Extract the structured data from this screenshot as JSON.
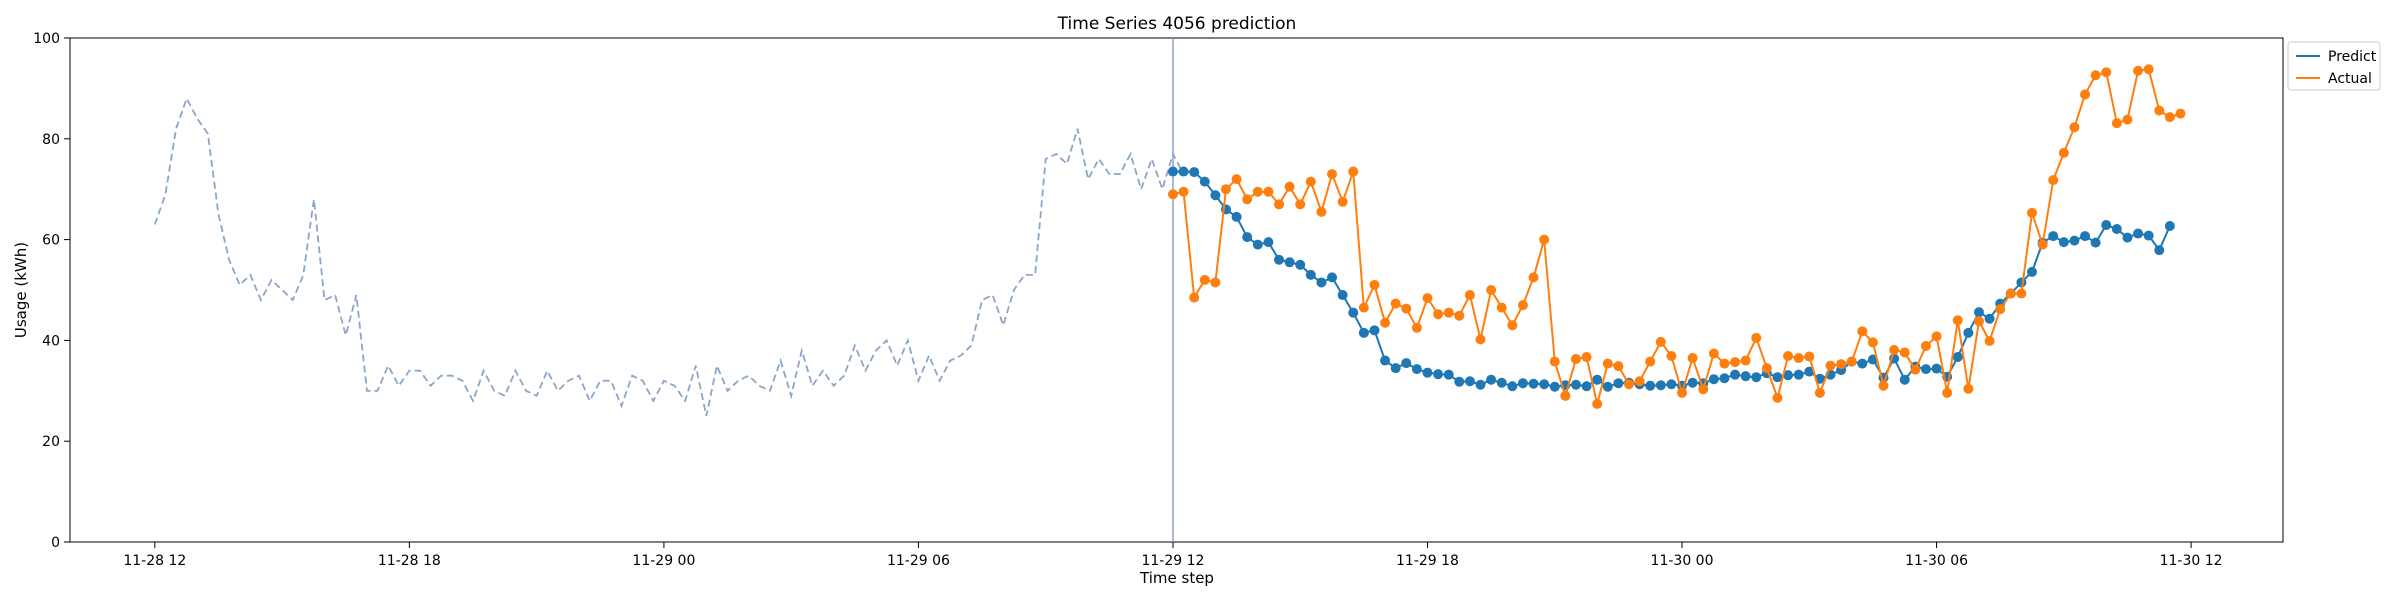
{
  "chart_data": {
    "type": "line",
    "title": "Time Series 4056 prediction",
    "xlabel": "Time step",
    "ylabel": "Usage (kWh)",
    "ylim": [
      0,
      100
    ],
    "y_ticks": [
      0,
      20,
      40,
      60,
      80,
      100
    ],
    "x_range": [
      "11-28 10:00",
      "11-30 14:10"
    ],
    "x_ticks": [
      {
        "t": "11-28 12:00",
        "label": "11-28 12"
      },
      {
        "t": "11-28 18:00",
        "label": "11-28 18"
      },
      {
        "t": "11-29 00:00",
        "label": "11-29 00"
      },
      {
        "t": "11-29 06:00",
        "label": "11-29 06"
      },
      {
        "t": "11-29 12:00",
        "label": "11-29 12"
      },
      {
        "t": "11-29 18:00",
        "label": "11-29 18"
      },
      {
        "t": "11-30 00:00",
        "label": "11-30 00"
      },
      {
        "t": "11-30 06:00",
        "label": "11-30 06"
      },
      {
        "t": "11-30 12:00",
        "label": "11-30 12"
      }
    ],
    "forecast_start": "11-29 12:00",
    "grid": false,
    "legend_position": "outside top-right",
    "history": {
      "start": "11-28 12:00",
      "step_minutes": 15,
      "style": "dashed",
      "color": "#8aa6c8",
      "values": [
        63,
        69,
        82,
        88,
        84,
        81,
        65,
        56,
        51,
        53,
        48,
        52,
        50,
        48,
        53,
        68,
        48,
        49,
        41,
        49,
        30,
        30,
        35,
        31,
        34,
        34,
        31,
        33,
        33,
        32,
        28,
        34,
        30,
        29,
        34,
        30,
        29,
        34,
        30,
        32,
        33,
        28,
        32,
        32,
        27,
        33,
        32,
        28,
        32,
        31,
        28,
        35,
        25,
        35,
        30,
        32,
        33,
        31,
        30,
        36,
        29,
        38,
        31,
        34,
        31,
        33,
        39,
        34,
        38,
        40,
        35,
        40,
        32,
        37,
        32,
        36,
        37,
        39,
        48,
        49,
        43,
        50,
        53,
        53,
        76,
        77,
        75,
        82,
        72,
        76,
        73,
        73,
        77,
        70,
        76,
        70,
        77,
        73
      ]
    },
    "series": [
      {
        "name": "Predict",
        "color": "#1f77b4",
        "start": "11-29 12:00",
        "step_minutes": 15,
        "values": [
          73.5,
          73.5,
          73.4,
          71.5,
          68.8,
          66,
          64.5,
          60.5,
          59,
          59.5,
          56,
          55.5,
          55,
          53,
          51.5,
          52.5,
          49,
          45.5,
          41.5,
          42,
          36,
          34.5,
          35.5,
          34.3,
          33.6,
          33.3,
          33.2,
          31.8,
          31.9,
          31.2,
          32.2,
          31.6,
          30.9,
          31.5,
          31.4,
          31.3,
          30.8,
          31.1,
          31.2,
          30.9,
          32.2,
          30.8,
          31.5,
          31.6,
          31.3,
          31,
          31.1,
          31.3,
          31,
          31.6,
          31.5,
          32.3,
          32.5,
          33.2,
          32.9,
          32.7,
          33.5,
          32.7,
          33.1,
          33.2,
          33.8,
          32.4,
          33.2,
          34.1,
          35.8,
          35.4,
          36.2,
          32.6,
          36.4,
          32.2,
          34.8,
          34.3,
          34.4,
          32.8,
          36.7,
          41.5,
          45.6,
          44.3,
          47.3,
          49.3,
          51.5,
          53.6,
          59.4,
          60.7,
          59.5,
          59.8,
          60.7,
          59.4,
          62.9,
          62.1,
          60.4,
          61.2,
          60.8,
          57.9,
          62.7
        ]
      },
      {
        "name": "Actual",
        "color": "#ff7f0e",
        "start": "11-29 12:00",
        "step_minutes": 15,
        "values": [
          69,
          69.5,
          48.5,
          52,
          51.5,
          70,
          72,
          68,
          69.5,
          69.5,
          67,
          70.5,
          67,
          71.5,
          65.5,
          73,
          67.5,
          73.5,
          46.5,
          51,
          43.5,
          47.3,
          46.3,
          42.5,
          48.4,
          45.2,
          45.5,
          44.9,
          49,
          40.2,
          50,
          46.5,
          43,
          47,
          52.5,
          60,
          35.8,
          29,
          36.3,
          36.7,
          27.4,
          35.4,
          34.9,
          31.3,
          31.9,
          35.8,
          39.7,
          36.9,
          29.6,
          36.5,
          30.3,
          37.4,
          35.4,
          35.7,
          36,
          40.5,
          34.5,
          28.6,
          36.9,
          36.5,
          36.8,
          29.6,
          35,
          35.3,
          35.8,
          41.8,
          39.6,
          31,
          38.1,
          37.6,
          34.2,
          38.9,
          40.8,
          29.6,
          44,
          30.4,
          43.8,
          39.9,
          46.2,
          49.3,
          49.3,
          65.3,
          59,
          71.8,
          77.2,
          82.3,
          88.8,
          92.6,
          93.2,
          83.1,
          83.8,
          93.5,
          93.8,
          85.6,
          84.3,
          85
        ]
      }
    ]
  }
}
